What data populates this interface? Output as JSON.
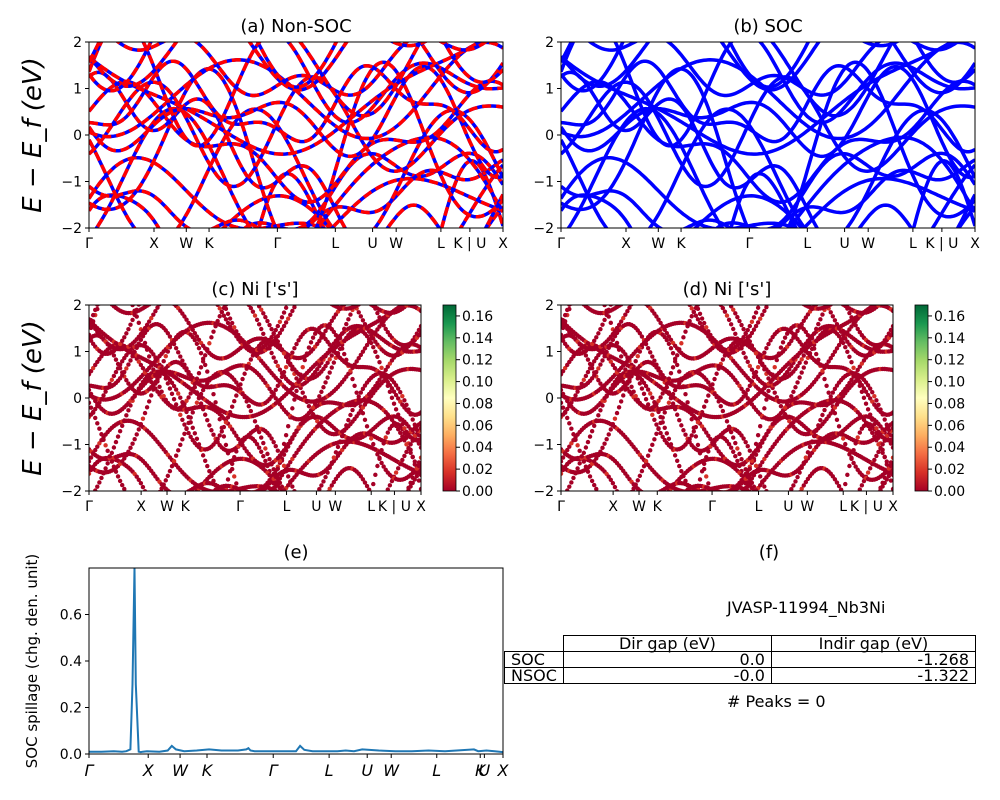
{
  "chart_data": [
    {
      "id": "a",
      "type": "line",
      "title": "(a) Non-SOC",
      "ylabel": "E − E_f (eV)",
      "ylim": [
        -2,
        2
      ],
      "yticks": [
        "−2",
        "−1",
        "0",
        "1",
        "2"
      ],
      "xticks": [
        "Γ",
        "X",
        "W",
        "K",
        "Γ",
        "L",
        "U",
        "W",
        "L",
        "K | U",
        "X"
      ],
      "style": "red dashed over blue",
      "colors": [
        "#0000ff",
        "#ff0000"
      ]
    },
    {
      "id": "b",
      "type": "line",
      "title": "(b) SOC",
      "ylim": [
        -2,
        2
      ],
      "yticks": [
        "−2",
        "−1",
        "0",
        "1",
        "2"
      ],
      "xticks": [
        "Γ",
        "X",
        "W",
        "K",
        "Γ",
        "L",
        "U",
        "W",
        "L",
        "K | U",
        "X"
      ],
      "colors": [
        "#0000ff"
      ]
    },
    {
      "id": "c",
      "type": "scatter",
      "title": "(c)  Ni ['s']",
      "ylabel": "E − E_f (eV)",
      "ylim": [
        -2,
        2
      ],
      "yticks": [
        "−2",
        "−1",
        "0",
        "1",
        "2"
      ],
      "xticks": [
        "Γ",
        "X",
        "W",
        "K",
        "Γ",
        "L",
        "U",
        "W",
        "L",
        "K | U",
        "X"
      ],
      "colorbar": {
        "ticks": [
          "0.00",
          "0.02",
          "0.04",
          "0.06",
          "0.08",
          "0.10",
          "0.12",
          "0.14",
          "0.16"
        ],
        "range": [
          0,
          0.17
        ],
        "colormap": "RdYlGn"
      }
    },
    {
      "id": "d",
      "type": "scatter",
      "title": "(d) Ni ['s']",
      "ylim": [
        -2,
        2
      ],
      "yticks": [
        "−2",
        "−1",
        "0",
        "1",
        "2"
      ],
      "xticks": [
        "Γ",
        "X",
        "W",
        "K",
        "Γ",
        "L",
        "U",
        "W",
        "L",
        "K | U",
        "X"
      ],
      "colorbar": {
        "ticks": [
          "0.00",
          "0.02",
          "0.04",
          "0.06",
          "0.08",
          "0.10",
          "0.12",
          "0.14",
          "0.16"
        ],
        "range": [
          0,
          0.17
        ],
        "colormap": "RdYlGn"
      }
    },
    {
      "id": "e",
      "type": "line",
      "title": "(e)",
      "ylabel": "SOC spillage (chg. den. unit)",
      "ylim": [
        0,
        0.8
      ],
      "yticks": [
        "0.0",
        "0.2",
        "0.4",
        "0.6"
      ],
      "xticks": [
        "Γ",
        "X",
        "W",
        "K",
        "Γ",
        "L",
        "U",
        "W",
        "L",
        "K",
        "U",
        "X"
      ],
      "series": [
        {
          "color": "#1f77b4",
          "x": [
            0,
            0.03,
            0.06,
            0.08,
            0.09,
            0.1,
            0.105,
            0.11,
            0.113,
            0.12,
            0.125,
            0.13,
            0.14,
            0.17,
            0.19,
            0.2,
            0.21,
            0.23,
            0.26,
            0.29,
            0.32,
            0.36,
            0.38,
            0.385,
            0.39,
            0.4,
            0.43,
            0.5,
            0.51,
            0.52,
            0.54,
            0.56,
            0.6,
            0.62,
            0.64,
            0.66,
            0.7,
            0.74,
            0.78,
            0.82,
            0.86,
            0.93,
            0.94,
            0.96,
            0.98,
            1.0
          ],
          "y": [
            0.01,
            0.01,
            0.012,
            0.01,
            0.012,
            0.02,
            0.3,
            0.8,
            0.3,
            0.01,
            0.008,
            0.01,
            0.012,
            0.01,
            0.015,
            0.035,
            0.02,
            0.012,
            0.015,
            0.02,
            0.015,
            0.015,
            0.02,
            0.025,
            0.015,
            0.012,
            0.012,
            0.012,
            0.035,
            0.018,
            0.012,
            0.012,
            0.012,
            0.015,
            0.012,
            0.02,
            0.015,
            0.012,
            0.012,
            0.015,
            0.012,
            0.02,
            0.012,
            0.015,
            0.012,
            0.008
          ]
        }
      ]
    },
    {
      "id": "f",
      "type": "table",
      "title": "(f)",
      "subtitle": "JVASP-11994_Nb3Ni",
      "columns": [
        "Dir gap (eV)",
        "Indir gap (eV)"
      ],
      "rows": [
        {
          "label": "SOC",
          "values": [
            "0.0",
            "-1.268"
          ]
        },
        {
          "label": "NSOC",
          "values": [
            "-0.0",
            "-1.322"
          ]
        }
      ],
      "footer": "# Peaks = 0"
    }
  ]
}
